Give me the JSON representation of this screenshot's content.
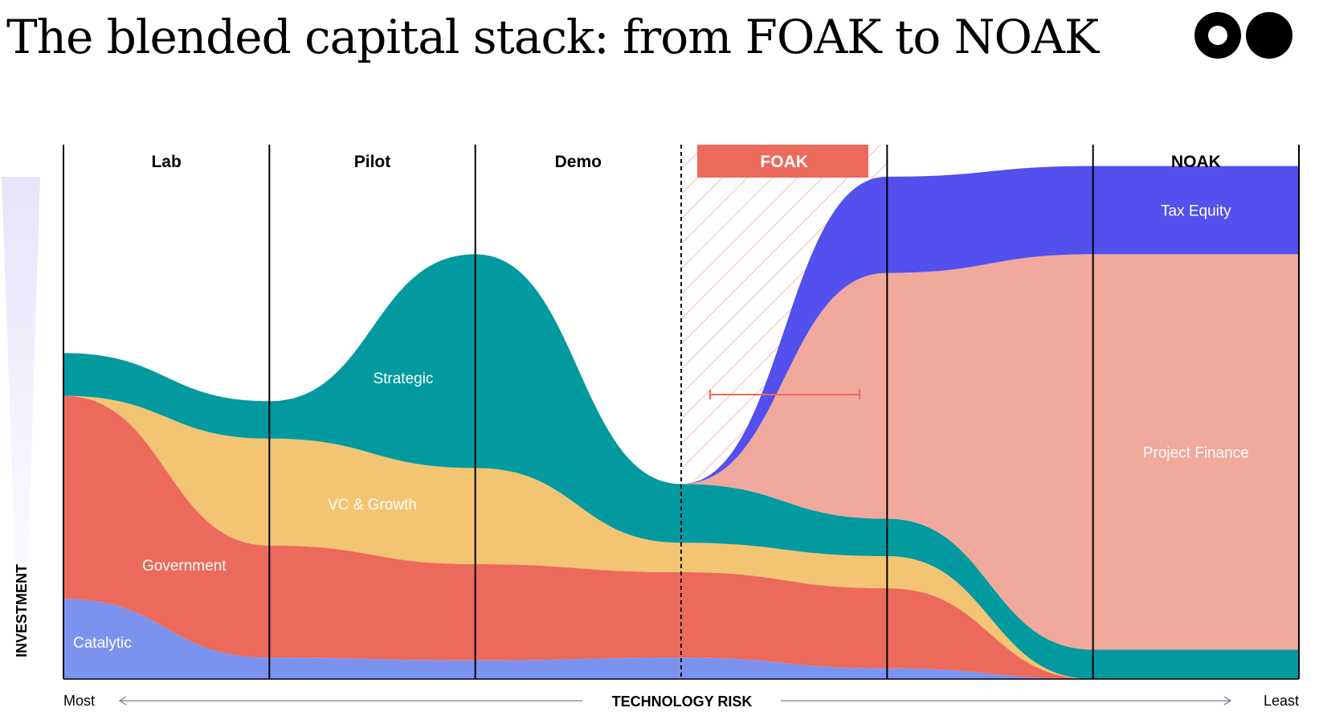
{
  "title": "The blended capital stack: from FOAK to NOAK",
  "logo": {
    "icon": "two-circles-logo-icon"
  },
  "chart_data": {
    "type": "area",
    "title": "The blended capital stack: from FOAK to NOAK",
    "xlabel": "TECHNOLOGY RISK",
    "ylabel": "INVESTMENT",
    "x_axis": {
      "left_label": "Most",
      "right_label": "Least",
      "direction": "decreasing risk to the right"
    },
    "stages": [
      "Lab",
      "Pilot",
      "Demo",
      "FOAK",
      "",
      "NOAK"
    ],
    "highlighted_stage": "FOAK",
    "units": "relative share of investment (0-100)",
    "x": [
      0,
      1,
      2,
      3,
      4,
      5,
      6
    ],
    "series": [
      {
        "name": "Catalytic",
        "color": "#7b93ef",
        "values": [
          15,
          4,
          3.5,
          4,
          2,
          0,
          0
        ]
      },
      {
        "name": "Government",
        "color": "#ec6a5c",
        "values": [
          38,
          21,
          18,
          16,
          15,
          0,
          0
        ]
      },
      {
        "name": "VC & Growth",
        "color": "#f3c472",
        "values": [
          0,
          20,
          18,
          5.5,
          6,
          0,
          0
        ]
      },
      {
        "name": "Strategic",
        "color": "#029a9f",
        "values": [
          8,
          7,
          40,
          11,
          7,
          5.5,
          5.5
        ]
      },
      {
        "name": "Project Finance",
        "color": "#f1a89d",
        "values": [
          0,
          0,
          0,
          0,
          46,
          74,
          74
        ]
      },
      {
        "name": "Tax Equity",
        "color": "#5350ed",
        "values": [
          0,
          0,
          0,
          0,
          18,
          16.5,
          16.5
        ]
      }
    ],
    "ylim": [
      0,
      100
    ],
    "grid": false,
    "legend": "none"
  }
}
